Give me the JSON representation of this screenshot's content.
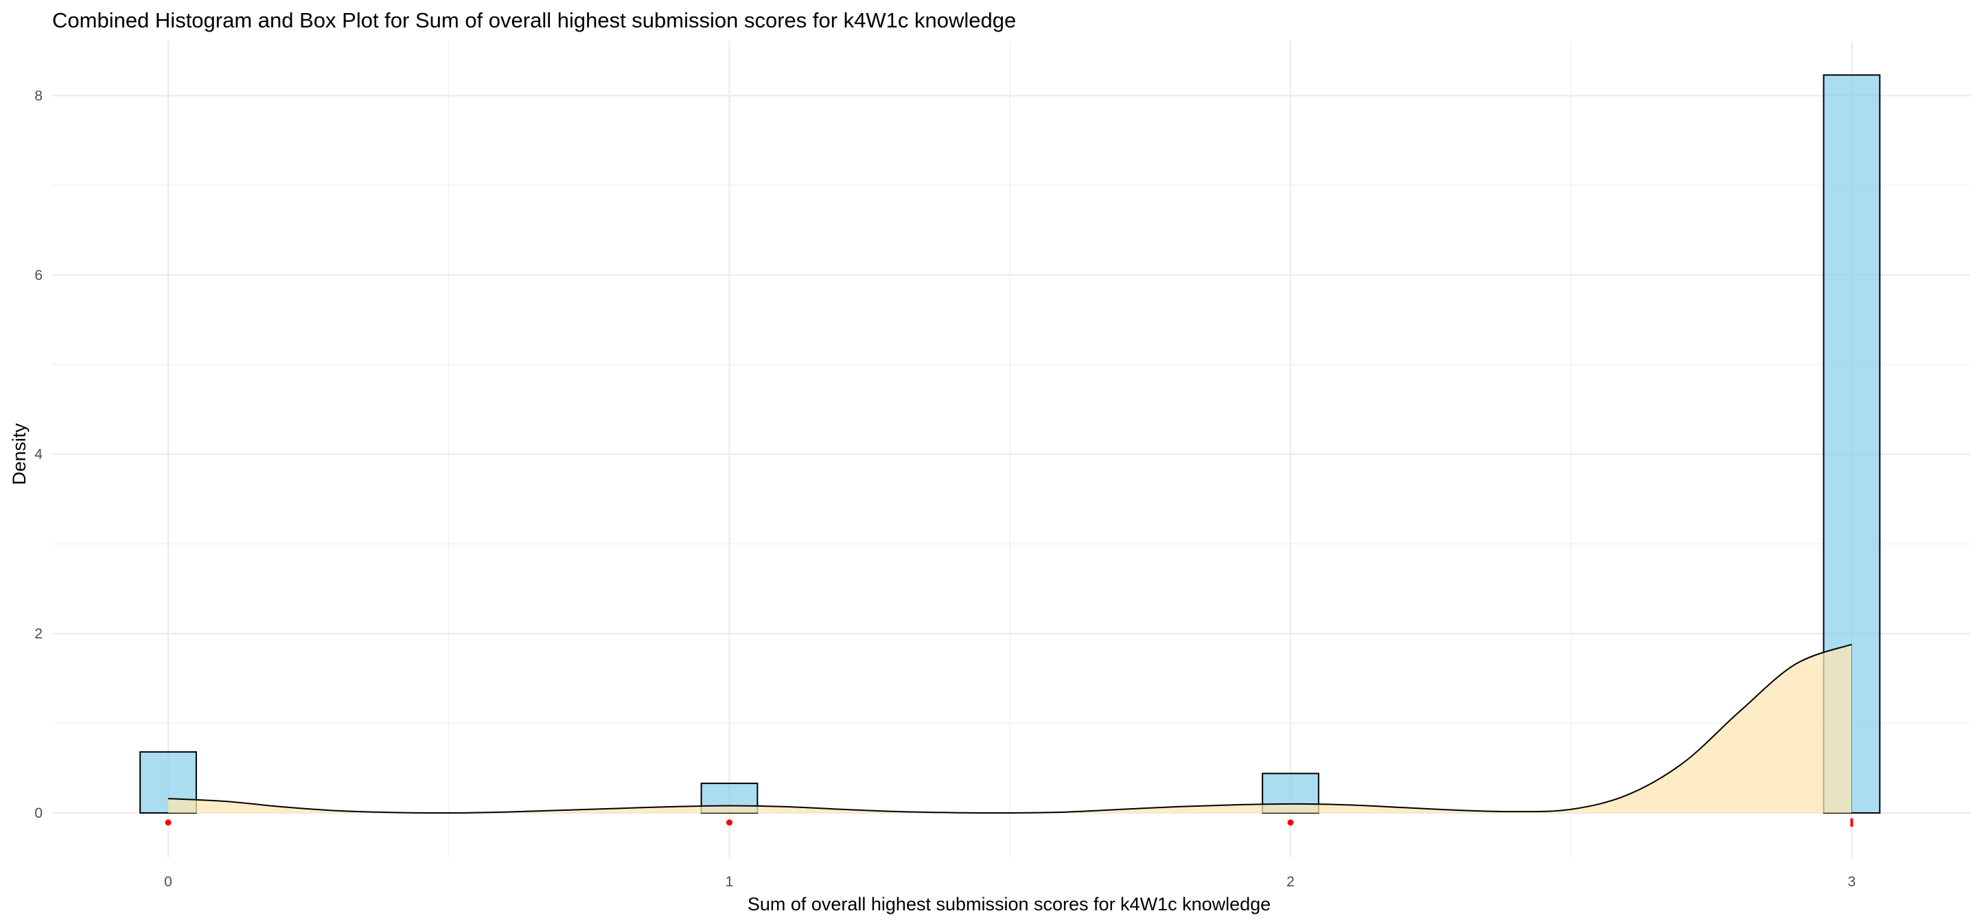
{
  "chart_data": {
    "type": "histogram",
    "title": "Combined Histogram and Box Plot for Sum of overall highest submission scores for k4W1c knowledge",
    "xlabel": "Sum of overall highest submission scores for k4W1c knowledge",
    "ylabel": "Density",
    "xlim": [
      -0.2,
      3.2
    ],
    "ylim": [
      -0.2,
      8.5
    ],
    "x_ticks": [
      0,
      1,
      2,
      3
    ],
    "x_tick_labels": [
      "0",
      "1",
      "2",
      "3"
    ],
    "y_ticks": [
      0,
      2,
      4,
      6,
      8
    ],
    "y_tick_labels": [
      "0",
      "2",
      "4",
      "6",
      "8"
    ],
    "grid": true,
    "histogram": {
      "bin_width": 0.1,
      "bins": [
        {
          "xmin": -0.05,
          "xmax": 0.05,
          "density": 0.68
        },
        {
          "xmin": 0.95,
          "xmax": 1.05,
          "density": 0.33
        },
        {
          "xmin": 1.95,
          "xmax": 2.05,
          "density": 0.44
        },
        {
          "xmin": 2.95,
          "xmax": 3.05,
          "density": 8.23
        }
      ],
      "fill": "#87ceeb",
      "stroke": "#000000"
    },
    "density_curve": {
      "x": [
        0.0,
        0.1,
        0.2,
        0.3,
        0.4,
        0.5,
        0.6,
        0.7,
        0.8,
        0.9,
        1.0,
        1.1,
        1.2,
        1.3,
        1.4,
        1.5,
        1.6,
        1.7,
        1.8,
        1.9,
        2.0,
        2.1,
        2.2,
        2.3,
        2.4,
        2.5,
        2.6,
        2.7,
        2.8,
        2.9,
        3.0
      ],
      "y": [
        0.16,
        0.13,
        0.07,
        0.025,
        0.005,
        0.0,
        0.01,
        0.03,
        0.05,
        0.07,
        0.08,
        0.07,
        0.04,
        0.015,
        0.003,
        0.0,
        0.01,
        0.04,
        0.07,
        0.09,
        0.1,
        0.09,
        0.06,
        0.03,
        0.015,
        0.04,
        0.2,
        0.56,
        1.13,
        1.66,
        1.88
      ],
      "fill": "#fce5b3",
      "stroke": "#000000"
    },
    "boxplot": {
      "points": [
        0,
        1,
        2
      ],
      "box_at": 3,
      "color": "#ff0000"
    }
  }
}
